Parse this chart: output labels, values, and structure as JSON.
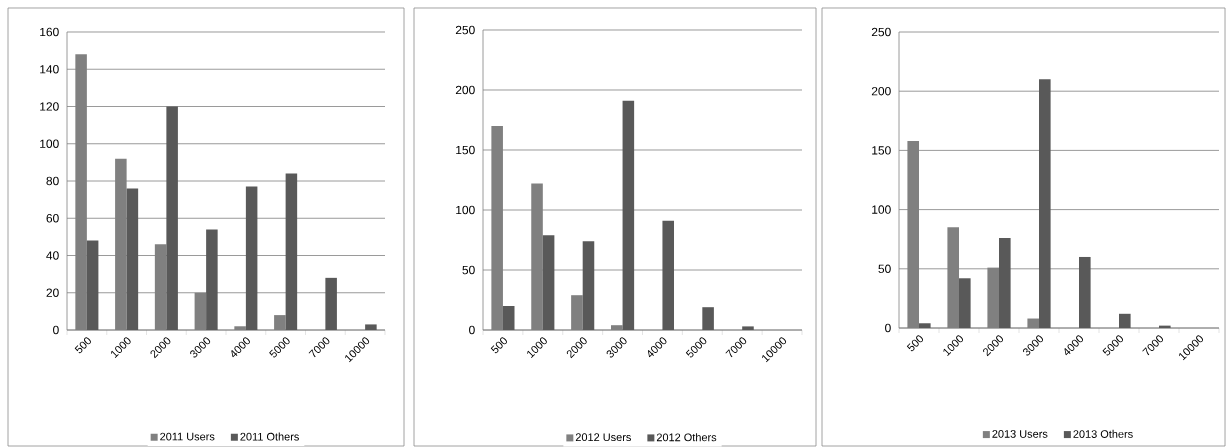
{
  "chart_data": [
    {
      "type": "bar",
      "categories": [
        "500",
        "1000",
        "2000",
        "3000",
        "4000",
        "5000",
        "7000",
        "10000"
      ],
      "series": [
        {
          "name": "2011 Users",
          "color": "#808080",
          "values": [
            148,
            92,
            46,
            20,
            2,
            8,
            0,
            0
          ]
        },
        {
          "name": "2011 Others",
          "color": "#595959",
          "values": [
            48,
            76,
            120,
            54,
            77,
            84,
            28,
            3
          ]
        }
      ],
      "ylim": [
        0,
        160
      ],
      "yticks": [
        0,
        20,
        40,
        60,
        80,
        100,
        120,
        140,
        160
      ],
      "grid": "y",
      "legend": "bottom"
    },
    {
      "type": "bar",
      "categories": [
        "500",
        "1000",
        "2000",
        "3000",
        "4000",
        "5000",
        "7000",
        "10000"
      ],
      "series": [
        {
          "name": "2012 Users",
          "color": "#808080",
          "values": [
            170,
            122,
            29,
            4,
            0,
            0,
            0,
            0
          ]
        },
        {
          "name": "2012 Others",
          "color": "#595959",
          "values": [
            20,
            79,
            74,
            191,
            91,
            19,
            3,
            0
          ]
        }
      ],
      "ylim": [
        0,
        250
      ],
      "yticks": [
        0,
        50,
        100,
        150,
        200,
        250
      ],
      "grid": "y",
      "legend": "bottom"
    },
    {
      "type": "bar",
      "categories": [
        "500",
        "1000",
        "2000",
        "3000",
        "4000",
        "5000",
        "7000",
        "10000"
      ],
      "series": [
        {
          "name": "2013 Users",
          "color": "#808080",
          "values": [
            158,
            85,
            51,
            8,
            0,
            0,
            0,
            0
          ]
        },
        {
          "name": "2013 Others",
          "color": "#595959",
          "values": [
            4,
            42,
            76,
            210,
            60,
            12,
            2,
            0
          ]
        }
      ],
      "ylim": [
        0,
        250
      ],
      "yticks": [
        0,
        50,
        100,
        150,
        200,
        250
      ],
      "grid": "y",
      "legend": "bottom"
    }
  ]
}
